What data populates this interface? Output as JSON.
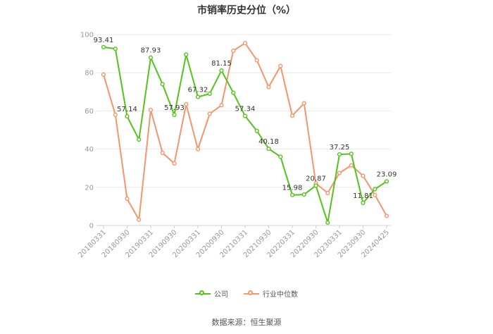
{
  "colors": {
    "company": "#52c41a",
    "industry": "#f4956a",
    "grid": "#e8e8e8",
    "axis": "#cccccc",
    "tick": "#999999"
  },
  "legend": {
    "company": "公司",
    "industry": "行业中位数"
  },
  "source": "数据来源：恒生聚源",
  "chart_data": {
    "type": "line",
    "title": "市销率历史分位（%）",
    "xlabel": "",
    "ylabel": "",
    "ylim": [
      0,
      100
    ],
    "yticks": [
      0,
      20,
      40,
      60,
      80,
      100
    ],
    "grid": true,
    "legend_position": "bottom",
    "x_tick_labels": [
      "20180331",
      "20180930",
      "20190331",
      "20190930",
      "20200331",
      "20200930",
      "20210331",
      "20210930",
      "20220331",
      "20220930",
      "20230331",
      "20230930",
      "20240425"
    ],
    "x": [
      "20180331",
      "20180630",
      "20180930",
      "20181231",
      "20190331",
      "20190630",
      "20190930",
      "20191231",
      "20200331",
      "20200630",
      "20200930",
      "20201231",
      "20210331",
      "20210630",
      "20210930",
      "20211231",
      "20220331",
      "20220630",
      "20220930",
      "20221231",
      "20230331",
      "20230630",
      "20230930",
      "20231231",
      "20240425"
    ],
    "series": [
      {
        "name": "公司",
        "values": [
          93.41,
          92.5,
          57.14,
          45,
          87.93,
          74,
          57.93,
          89.5,
          67.32,
          69,
          81.15,
          69.5,
          57.34,
          49.5,
          40.18,
          36,
          15.98,
          16.2,
          20.87,
          1.5,
          37.25,
          37.5,
          11.81,
          19,
          23.09
        ],
        "labels": [
          "93.41",
          "",
          "57.14",
          "",
          "87.93",
          "",
          "57.93",
          "",
          "67.32",
          "",
          "81.15",
          "",
          "57.34",
          "",
          "40.18",
          "",
          "15.98",
          "",
          "20.87",
          "",
          "37.25",
          "",
          "11.81",
          "",
          "23.09"
        ]
      },
      {
        "name": "行业中位数",
        "values": [
          79,
          58,
          14,
          3,
          60.5,
          38,
          32.5,
          63.5,
          40,
          58.5,
          63,
          91.5,
          95.5,
          86.5,
          72.5,
          83.5,
          57.5,
          64,
          22,
          17,
          27.5,
          31.5,
          26,
          16,
          5
        ]
      }
    ]
  }
}
